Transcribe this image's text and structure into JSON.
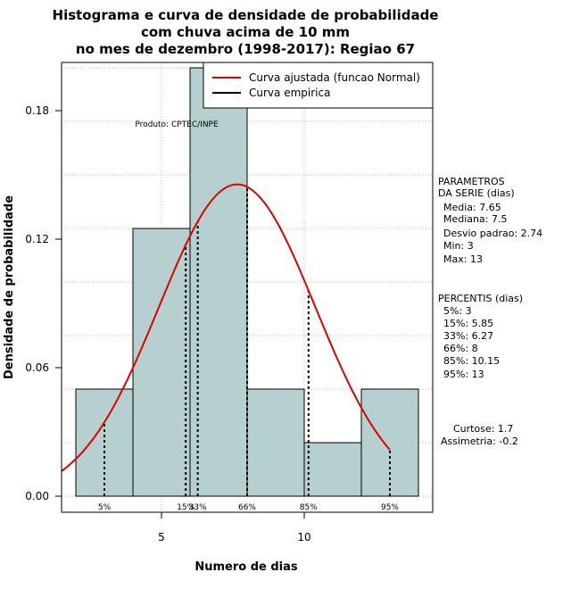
{
  "chart_data": {
    "type": "histogram",
    "title_lines": [
      "Histograma e curva de densidade de probabilidade",
      "com chuva acima de 10 mm",
      "no mes de dezembro (1998-2017): Regiao 67"
    ],
    "xlabel": "Numero de dias",
    "ylabel": "Densidade de probabilidade",
    "xlim": [
      1.5,
      14.5
    ],
    "ylim": [
      -0.0075,
      0.2025
    ],
    "x_ticks": [
      5,
      10
    ],
    "y_ticks": [
      "0.00",
      "0.06",
      "0.12",
      "0.18"
    ],
    "y_tick_values": [
      0,
      0.06,
      0.12,
      0.18
    ],
    "grid": true,
    "bar_color": "#b6cfcf",
    "curve_color": "#e00000",
    "bins": [
      {
        "x0": 2,
        "x1": 4,
        "density": 0.05
      },
      {
        "x0": 4,
        "x1": 6,
        "density": 0.125
      },
      {
        "x0": 6,
        "x1": 8,
        "density": 0.2
      },
      {
        "x0": 8,
        "x1": 10,
        "density": 0.05
      },
      {
        "x0": 10,
        "x1": 12,
        "density": 0.025
      },
      {
        "x0": 12,
        "x1": 14,
        "density": 0.05
      }
    ],
    "normal_fit": {
      "mean": 7.65,
      "sd": 2.74,
      "x_range": [
        1.5,
        13
      ]
    },
    "percentile_lines": [
      {
        "label": "5%",
        "x": 3
      },
      {
        "label": "15%",
        "x": 5.85
      },
      {
        "label": "33%",
        "x": 6.27
      },
      {
        "label": "66%",
        "x": 8
      },
      {
        "label": "85%",
        "x": 10.15
      },
      {
        "label": "95%",
        "x": 13
      }
    ],
    "legend": {
      "position": "top-right",
      "entries": [
        {
          "label": "Curva ajustada (funcao Normal)",
          "color": "#e00000"
        },
        {
          "label": "Curva empirica",
          "color": "#000000"
        }
      ]
    },
    "annotation": "Produto: CPTEC/INPE",
    "side_panel": {
      "params_title": [
        "PARAMETROS",
        "DA SERIE (dias)"
      ],
      "params": [
        "Media: 7.65",
        "Mediana: 7.5",
        "Desvio padrao: 2.74",
        "Min: 3",
        "Max: 13"
      ],
      "percentis_title": "PERCENTIS (dias)",
      "percentis": [
        "5%: 3",
        "15%: 5.85",
        "33%: 6.27",
        "66%: 8",
        "85%: 10.15",
        "95%: 13"
      ],
      "stats": [
        "Curtose: 1.7",
        "Assimetria: -0.2"
      ]
    }
  }
}
